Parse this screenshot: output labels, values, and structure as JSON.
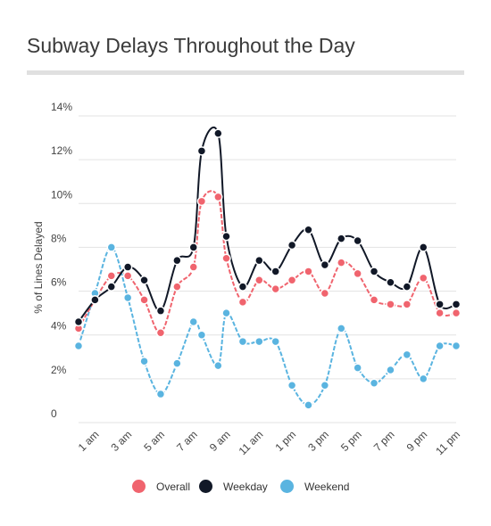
{
  "chart_data": {
    "type": "line",
    "title": "Subway Delays Throughout the Day",
    "ylabel": "% of Lines Delayed",
    "xlabel": "",
    "ylim": [
      0,
      14
    ],
    "yticks": [
      "0",
      "2%",
      "4%",
      "6%",
      "8%",
      "10%",
      "12%",
      "14%"
    ],
    "xticks": [
      "1 am",
      "3 am",
      "5 am",
      "7 am",
      "9 am",
      "11 am",
      "1 pm",
      "3 pm",
      "5 pm",
      "7 pm",
      "9 pm",
      "11 pm"
    ],
    "x": [
      0.0,
      1.0,
      2.0,
      3.0,
      4.0,
      5.0,
      6.0,
      7.0,
      7.5,
      8.5,
      9.0,
      10.0,
      11.0,
      12.0,
      13.0,
      14.0,
      15.0,
      16.0,
      17.0,
      18.0,
      19.0,
      20.0,
      21.0,
      22.0,
      23.0
    ],
    "series": [
      {
        "name": "Overall",
        "color": "#f0646e",
        "values": [
          4.3,
          5.6,
          6.7,
          6.7,
          5.6,
          4.1,
          6.2,
          7.1,
          10.1,
          10.3,
          7.5,
          5.5,
          6.5,
          6.1,
          6.5,
          6.9,
          5.9,
          7.3,
          6.8,
          5.6,
          5.4,
          5.4,
          6.6,
          5.0,
          5.0
        ]
      },
      {
        "name": "Weekday",
        "color": "#111827",
        "values": [
          4.6,
          5.6,
          6.2,
          7.1,
          6.5,
          5.1,
          7.4,
          8.0,
          12.4,
          13.2,
          8.5,
          6.2,
          7.4,
          6.9,
          8.1,
          8.8,
          7.2,
          8.4,
          8.3,
          6.9,
          6.4,
          6.2,
          8.0,
          5.4,
          5.4
        ]
      },
      {
        "name": "Weekend",
        "color": "#5ab4e0",
        "values": [
          3.5,
          5.9,
          8.0,
          5.7,
          2.8,
          1.3,
          2.7,
          4.6,
          4.0,
          2.6,
          5.0,
          3.7,
          3.7,
          3.7,
          1.7,
          0.8,
          1.7,
          4.3,
          2.5,
          1.8,
          2.4,
          3.1,
          2.0,
          3.5,
          3.5
        ]
      }
    ],
    "grid": true,
    "legend_position": "bottom"
  }
}
